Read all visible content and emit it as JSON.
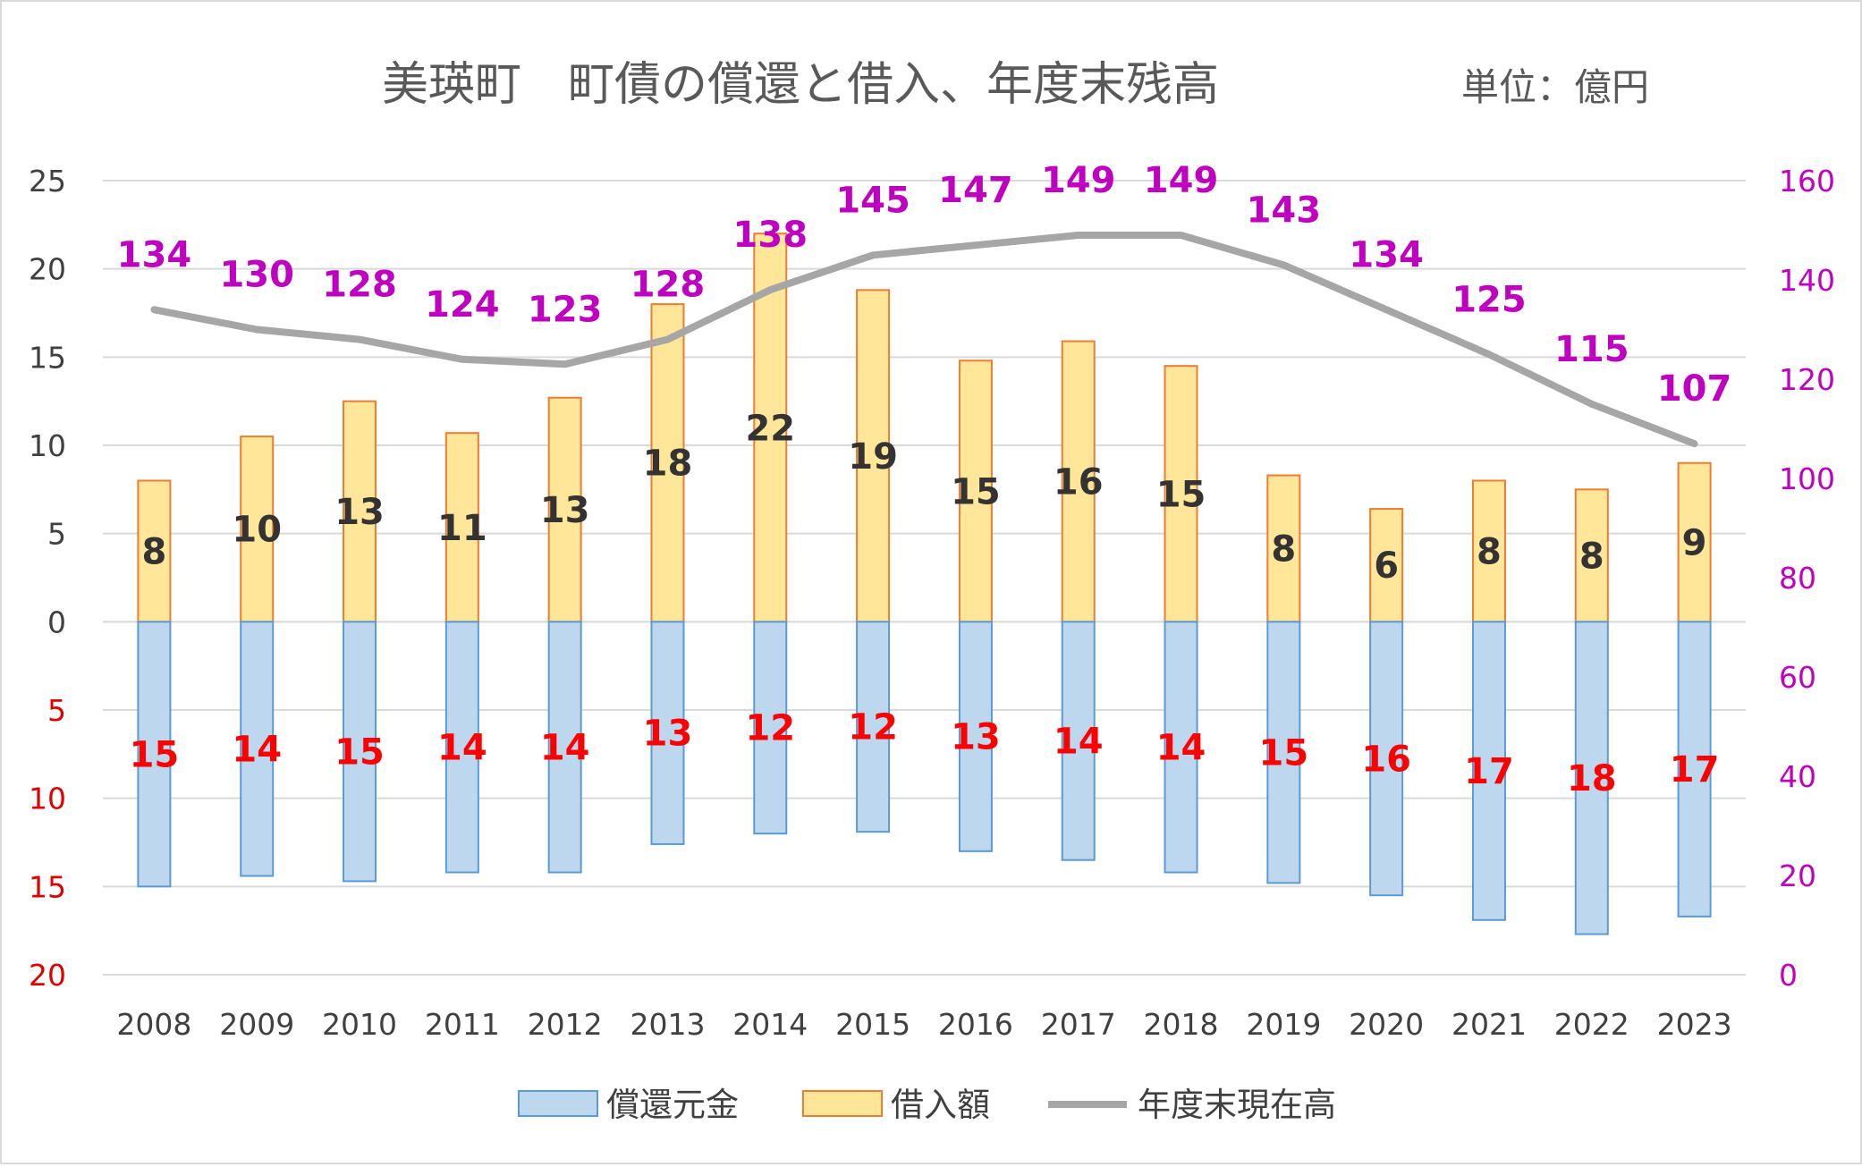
{
  "chart_data": {
    "type": "bar",
    "title": "美瑛町　町債の償還と借入、年度末残高",
    "unit_label": "単位：億円",
    "categories": [
      "2008",
      "2009",
      "2010",
      "2011",
      "2012",
      "2013",
      "2014",
      "2015",
      "2016",
      "2017",
      "2018",
      "2019",
      "2020",
      "2021",
      "2022",
      "2023"
    ],
    "series": [
      {
        "name": "償還元金",
        "axis": "left",
        "direction": "down",
        "color": "#bdd7ee",
        "border": "#5b9bd5",
        "values": [
          15.0,
          14.4,
          14.7,
          14.2,
          14.2,
          12.6,
          12.0,
          11.9,
          13.0,
          13.5,
          14.2,
          14.8,
          15.5,
          16.9,
          17.7,
          16.7
        ],
        "labels": [
          "15",
          "14",
          "15",
          "14",
          "14",
          "13",
          "12",
          "12",
          "13",
          "14",
          "14",
          "15",
          "16",
          "17",
          "18",
          "17"
        ]
      },
      {
        "name": "借入額",
        "axis": "left",
        "direction": "up",
        "color": "#ffe699",
        "border": "#ed7d31",
        "values": [
          8.0,
          10.5,
          12.5,
          10.7,
          12.7,
          18.0,
          22.0,
          18.8,
          14.8,
          15.9,
          14.5,
          8.3,
          6.4,
          8.0,
          7.5,
          9.0
        ],
        "labels": [
          "8",
          "10",
          "13",
          "11",
          "13",
          "18",
          "22",
          "19",
          "15",
          "16",
          "15",
          "8",
          "6",
          "8",
          "8",
          "9"
        ]
      },
      {
        "name": "年度末現在高",
        "axis": "right",
        "type": "line",
        "color": "#a6a6a6",
        "values": [
          134,
          130,
          128,
          124,
          123,
          128,
          138,
          145,
          147,
          149,
          149,
          143,
          134,
          125,
          115,
          107
        ],
        "labels": [
          "134",
          "130",
          "128",
          "124",
          "123",
          "128",
          "138",
          "145",
          "147",
          "149",
          "149",
          "143",
          "134",
          "125",
          "115",
          "107"
        ]
      }
    ],
    "left_axis": {
      "positive_ticks": [
        "25",
        "20",
        "15",
        "10",
        "5",
        "0"
      ],
      "negative_ticks": [
        "5",
        "10",
        "15",
        "20"
      ],
      "range": [
        -20,
        25
      ],
      "step": 5
    },
    "right_axis": {
      "ticks": [
        "160",
        "140",
        "120",
        "100",
        "80",
        "60",
        "40",
        "20",
        "0"
      ],
      "range": [
        0,
        160
      ],
      "step": 20
    },
    "grid": true,
    "legend_position": "bottom"
  }
}
